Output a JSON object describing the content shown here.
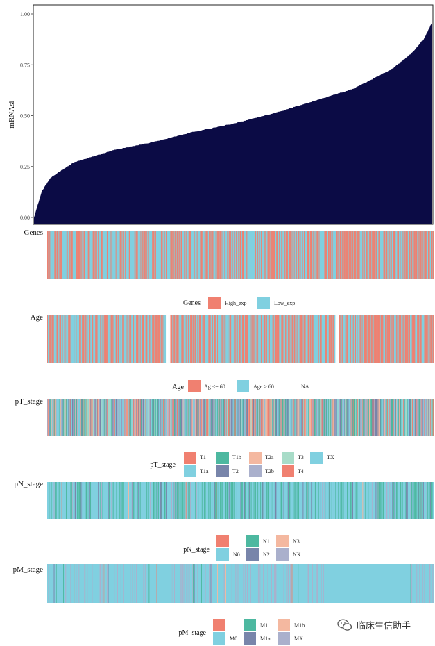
{
  "chart_data": [
    {
      "type": "area",
      "title": "",
      "xlabel": "",
      "ylabel": "mRNAsi",
      "ylim": [
        0,
        1.05
      ],
      "yticks": [
        "0.00",
        "0.25",
        "0.50",
        "0.75",
        "1.00"
      ],
      "yticks_values": [
        0,
        0.25,
        0.5,
        0.75,
        1.0
      ],
      "sorted_curve": {
        "n_samples": 1000,
        "fraction": [
          0,
          0.02,
          0.04,
          0.06,
          0.1,
          0.2,
          0.3,
          0.4,
          0.5,
          0.6,
          0.7,
          0.8,
          0.9,
          0.95,
          0.98,
          1.0
        ],
        "values": [
          0.0,
          0.13,
          0.19,
          0.22,
          0.27,
          0.33,
          0.37,
          0.42,
          0.46,
          0.51,
          0.57,
          0.63,
          0.73,
          0.81,
          0.88,
          0.96
        ]
      },
      "fill_color": "#0b0b45"
    },
    {
      "type": "heatmap",
      "tracks": [
        {
          "name": "Genes",
          "legend_title": "Genes",
          "levels": [
            "High_exp",
            "Low_exp"
          ],
          "colors": [
            "#f08070",
            "#80d0e0"
          ],
          "proportions": [
            0.45,
            0.55
          ],
          "na_gaps": []
        },
        {
          "name": "Age",
          "legend_title": "Age",
          "levels": [
            "Ag <= 60",
            "Age > 60",
            "NA"
          ],
          "colors": [
            "#f08070",
            "#80d0e0",
            "#ffffff"
          ],
          "proportions": [
            0.45,
            0.55,
            0.0
          ],
          "na_gaps": [
            [
              0.306,
              0.318
            ],
            [
              0.745,
              0.753
            ]
          ]
        },
        {
          "name": "pT_stage",
          "legend_title": "pT_stage",
          "levels": [
            "T1",
            "T1a",
            "T1b",
            "T2",
            "T2a",
            "T2b",
            "T3",
            "T4",
            "TX"
          ],
          "colors": [
            "#f08070",
            "#80d0e0",
            "#4db8a0",
            "#7885aa",
            "#f4b8a0",
            "#aab0cc",
            "#a8dcc8",
            "#f08070",
            "#80d0e0"
          ],
          "proportions": [
            0.1,
            0.17,
            0.14,
            0.2,
            0.1,
            0.11,
            0.09,
            0.05,
            0.04
          ],
          "na_gaps": []
        },
        {
          "name": "pN_stage",
          "legend_title": "pN_stage",
          "levels": [
            "",
            "N0",
            "N1",
            "N2",
            "N3",
            "NX"
          ],
          "colors": [
            "#f08070",
            "#80d0e0",
            "#4db8a0",
            "#7885aa",
            "#f4b8a0",
            "#aab0cc"
          ],
          "proportions": [
            0.005,
            0.64,
            0.25,
            0.05,
            0.005,
            0.05
          ],
          "na_gaps": []
        },
        {
          "name": "pM_stage",
          "legend_title": "pM_stage",
          "levels": [
            "",
            "M0",
            "M1",
            "M1a",
            "M1b",
            "MX"
          ],
          "colors": [
            "#f08070",
            "#80d0e0",
            "#4db8a0",
            "#7885aa",
            "#f4b8a0",
            "#aab0cc"
          ],
          "proportions": [
            0.01,
            0.8,
            0.01,
            0.01,
            0.005,
            0.165
          ],
          "na_gaps": []
        }
      ]
    }
  ],
  "watermark": {
    "text": "临床生信助手"
  }
}
